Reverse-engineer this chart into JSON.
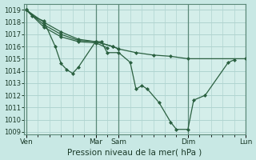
{
  "bg_color": "#c8e8e4",
  "plot_bg": "#d4eeea",
  "grid_color": "#b0d4d0",
  "vline_color": "#5a8878",
  "line_color": "#2a6040",
  "marker_color": "#2a6040",
  "xlabel": "Pression niveau de la mer( hPa )",
  "ylim": [
    1008.8,
    1019.5
  ],
  "xlim": [
    -0.2,
    19.0
  ],
  "yticks": [
    1009,
    1010,
    1011,
    1012,
    1013,
    1014,
    1015,
    1016,
    1017,
    1018,
    1019
  ],
  "xtick_positions": [
    0.0,
    6.0,
    8.0,
    14.0,
    19.0
  ],
  "xtick_labels": [
    "Ven",
    "Mar",
    "Sam",
    "Dim",
    "Lun"
  ],
  "vline_positions": [
    0.0,
    6.0,
    8.0,
    14.0,
    19.0
  ],
  "series": [
    {
      "x": [
        0.0,
        0.5,
        1.5,
        2.5,
        3.0,
        3.5,
        4.0,
        4.5,
        6.0,
        6.5,
        7.0,
        8.0,
        9.0,
        9.5,
        10.0,
        10.5,
        11.5,
        12.5,
        13.0,
        14.0,
        14.5,
        15.5,
        17.5,
        18.0
      ],
      "y": [
        1019.0,
        1018.5,
        1018.1,
        1016.0,
        1014.6,
        1014.1,
        1013.8,
        1014.3,
        1016.4,
        1016.4,
        1015.5,
        1015.5,
        1014.7,
        1012.5,
        1012.8,
        1012.5,
        1011.4,
        1009.8,
        1009.2,
        1009.2,
        1011.6,
        1012.0,
        1014.7,
        1014.9
      ]
    },
    {
      "x": [
        0.0,
        1.5,
        3.0,
        4.5,
        6.0,
        7.5,
        8.0,
        9.5,
        11.0,
        12.5,
        14.0,
        19.0
      ],
      "y": [
        1019.0,
        1018.0,
        1017.2,
        1016.6,
        1016.4,
        1016.0,
        1015.8,
        1015.5,
        1015.3,
        1015.2,
        1015.0,
        1015.0
      ]
    },
    {
      "x": [
        0.0,
        1.5,
        3.0,
        4.5,
        6.0,
        7.5,
        8.0
      ],
      "y": [
        1019.0,
        1017.8,
        1017.0,
        1016.5,
        1016.4,
        1016.0,
        1015.8
      ]
    },
    {
      "x": [
        0.0,
        1.5,
        3.0,
        4.5,
        6.0,
        7.0
      ],
      "y": [
        1019.0,
        1017.6,
        1016.8,
        1016.4,
        1016.3,
        1015.9
      ]
    }
  ]
}
